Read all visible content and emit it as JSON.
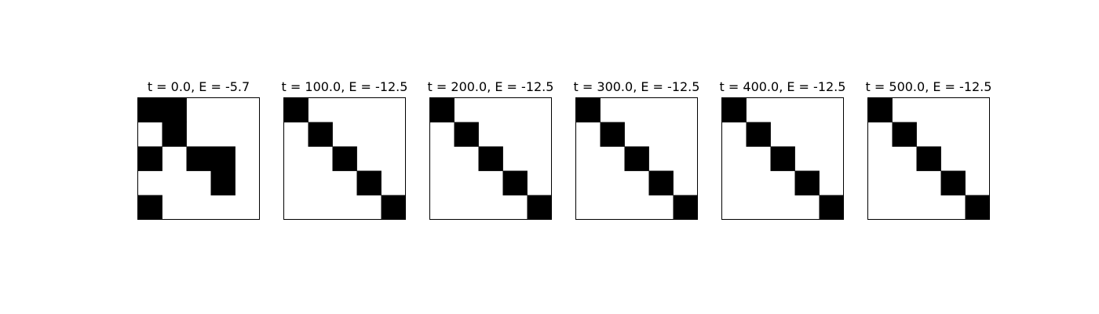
{
  "chart_data": {
    "type": "heatmap",
    "grid_size": 5,
    "colors": {
      "filled": "#000000",
      "empty": "#ffffff",
      "frame": "#000000"
    },
    "panels": [
      {
        "title": "t = 0.0, E = -5.7",
        "matrix": [
          [
            1,
            1,
            0,
            0,
            0
          ],
          [
            0,
            1,
            0,
            0,
            0
          ],
          [
            1,
            0,
            1,
            1,
            0
          ],
          [
            0,
            0,
            0,
            1,
            0
          ],
          [
            1,
            0,
            0,
            0,
            0
          ]
        ]
      },
      {
        "title": "t = 100.0, E = -12.5",
        "matrix": [
          [
            1,
            0,
            0,
            0,
            0
          ],
          [
            0,
            1,
            0,
            0,
            0
          ],
          [
            0,
            0,
            1,
            0,
            0
          ],
          [
            0,
            0,
            0,
            1,
            0
          ],
          [
            0,
            0,
            0,
            0,
            1
          ]
        ]
      },
      {
        "title": "t = 200.0, E = -12.5",
        "matrix": [
          [
            1,
            0,
            0,
            0,
            0
          ],
          [
            0,
            1,
            0,
            0,
            0
          ],
          [
            0,
            0,
            1,
            0,
            0
          ],
          [
            0,
            0,
            0,
            1,
            0
          ],
          [
            0,
            0,
            0,
            0,
            1
          ]
        ]
      },
      {
        "title": "t = 300.0, E = -12.5",
        "matrix": [
          [
            1,
            0,
            0,
            0,
            0
          ],
          [
            0,
            1,
            0,
            0,
            0
          ],
          [
            0,
            0,
            1,
            0,
            0
          ],
          [
            0,
            0,
            0,
            1,
            0
          ],
          [
            0,
            0,
            0,
            0,
            1
          ]
        ]
      },
      {
        "title": "t = 400.0, E = -12.5",
        "matrix": [
          [
            1,
            0,
            0,
            0,
            0
          ],
          [
            0,
            1,
            0,
            0,
            0
          ],
          [
            0,
            0,
            1,
            0,
            0
          ],
          [
            0,
            0,
            0,
            1,
            0
          ],
          [
            0,
            0,
            0,
            0,
            1
          ]
        ]
      },
      {
        "title": "t = 500.0, E = -12.5",
        "matrix": [
          [
            1,
            0,
            0,
            0,
            0
          ],
          [
            0,
            1,
            0,
            0,
            0
          ],
          [
            0,
            0,
            1,
            0,
            0
          ],
          [
            0,
            0,
            0,
            1,
            0
          ],
          [
            0,
            0,
            0,
            0,
            1
          ]
        ]
      }
    ]
  }
}
